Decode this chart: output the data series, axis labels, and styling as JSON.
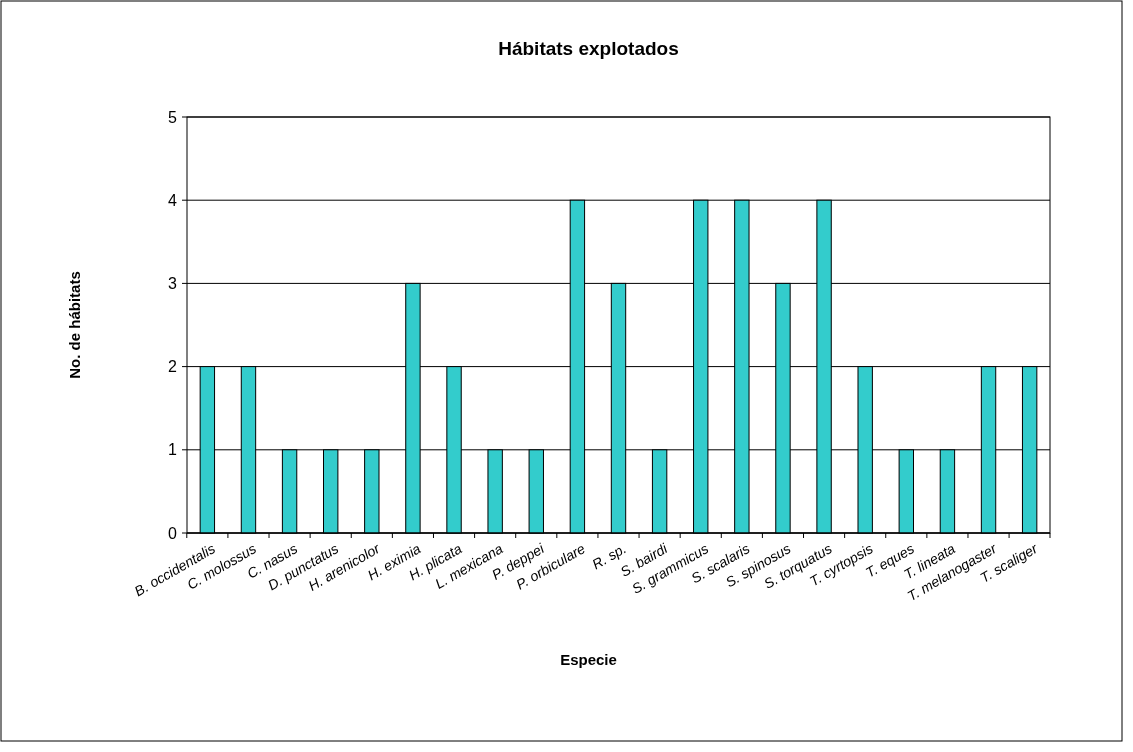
{
  "chart_data": {
    "type": "bar",
    "title": "Hábitats explotados",
    "xlabel": "Especie",
    "ylabel": "No. de hábitats",
    "categories": [
      "B. occidentalis",
      "C. molossus",
      "C. nasus",
      "D. punctatus",
      "H. arenicolor",
      "H. eximia",
      "H. plicata",
      "L. mexicana",
      "P. deppei",
      "P. orbiculare",
      "R. sp.",
      "S. bairdi",
      "S. grammicus",
      "S. scalaris",
      "S. spinosus",
      "S. torquatus",
      "T. cyrtopsis",
      "T. eques",
      "T. lineata",
      "T. melanogaster",
      "T. scaliger"
    ],
    "values": [
      2,
      2,
      1,
      1,
      1,
      3,
      2,
      1,
      1,
      4,
      3,
      1,
      4,
      4,
      3,
      4,
      2,
      1,
      1,
      2,
      2
    ],
    "color": "#33cccc",
    "ylim": [
      0,
      5
    ],
    "yticks": [
      0,
      1,
      2,
      3,
      4,
      5
    ],
    "grid": "y"
  }
}
